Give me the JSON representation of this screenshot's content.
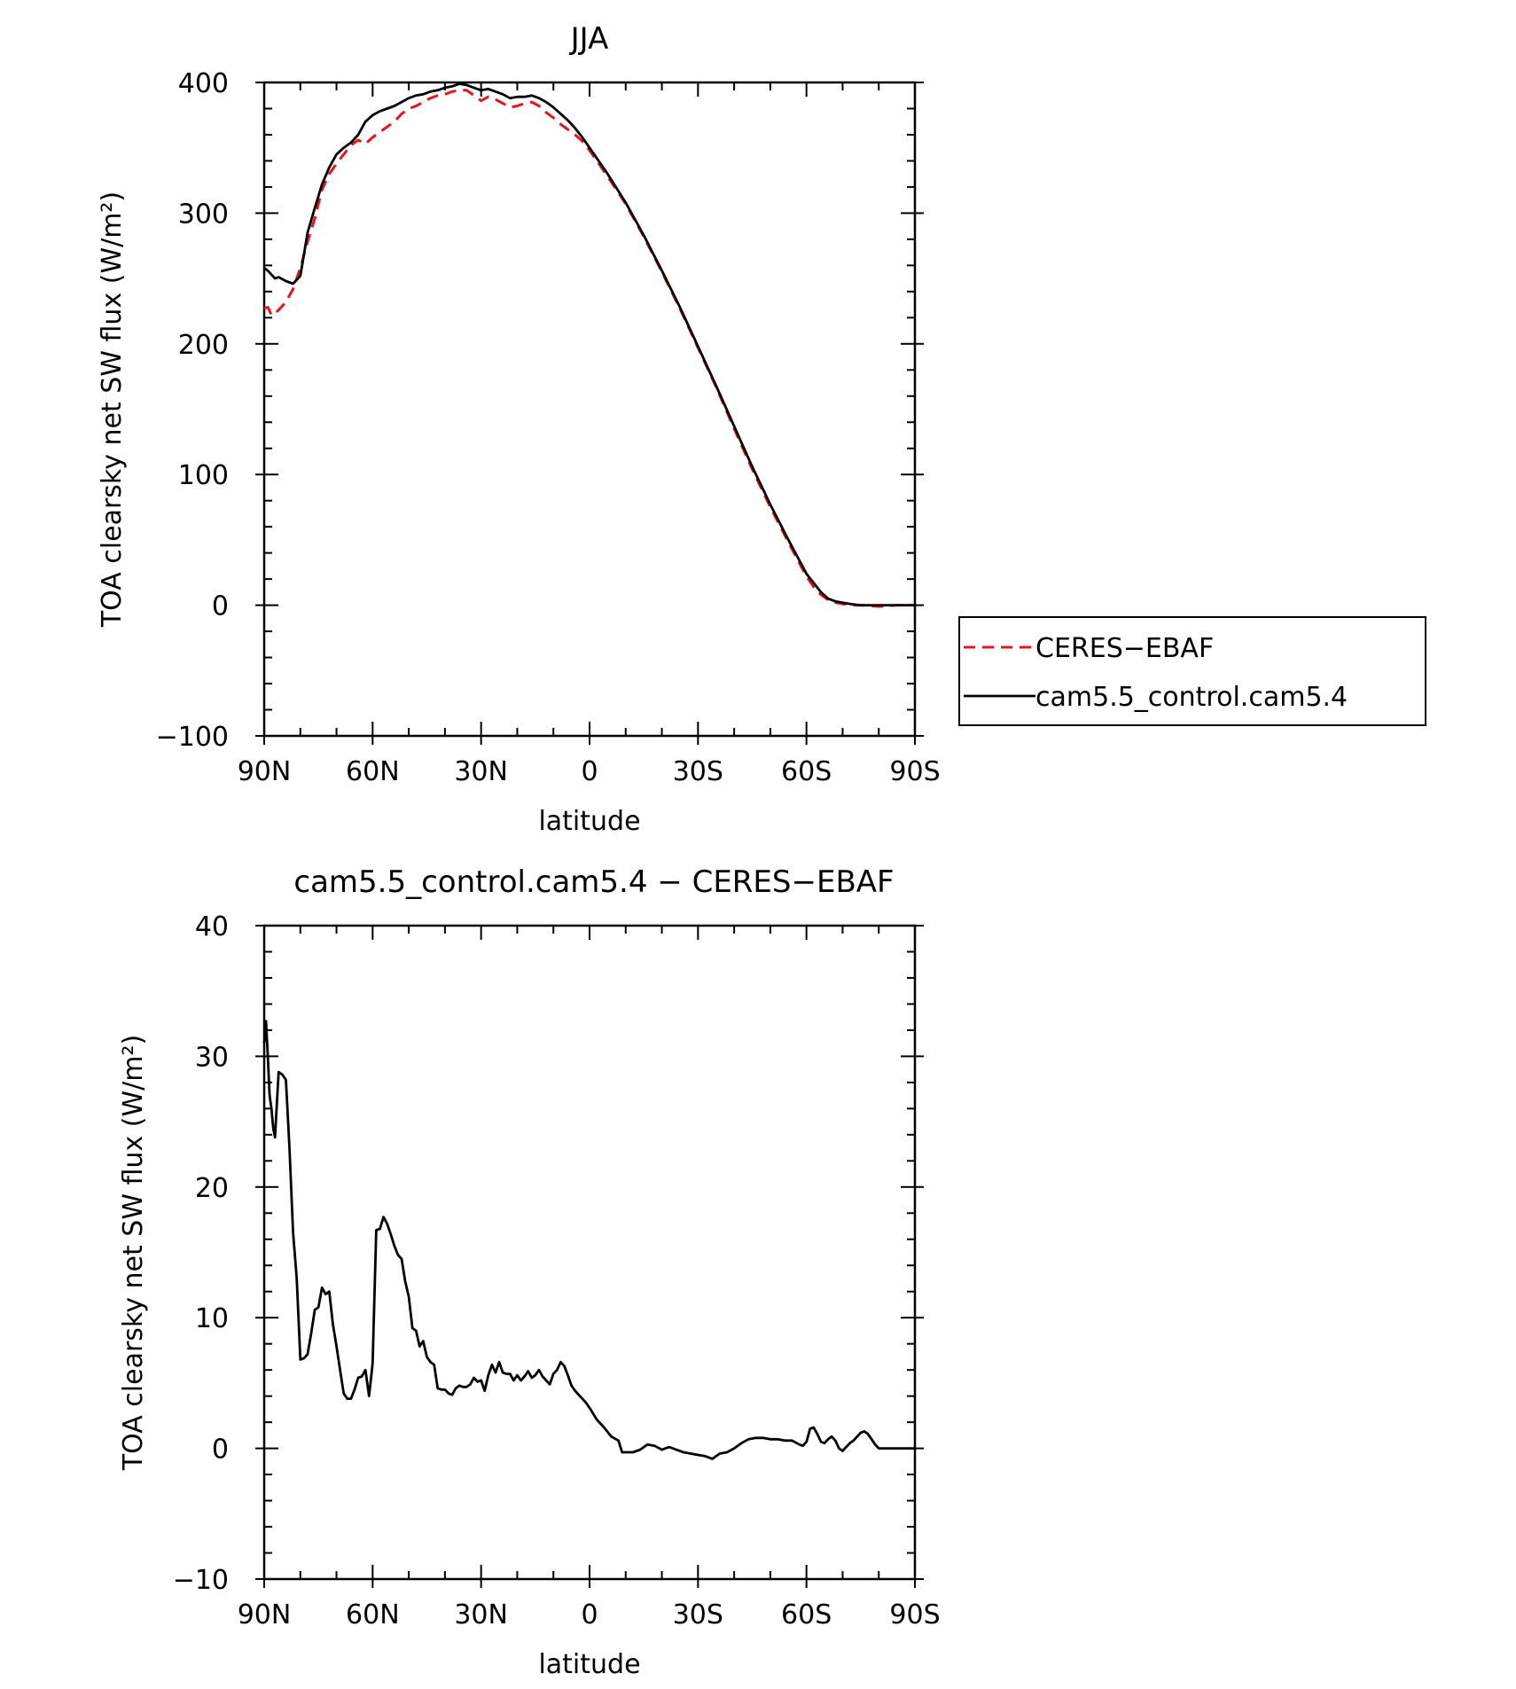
{
  "chart_data": [
    {
      "type": "line",
      "title": "JJA",
      "xlabel": "latitude",
      "ylabel": "TOA clearsky net SW flux (W/m²)",
      "xlim": [
        90,
        -90
      ],
      "ylim": [
        -100,
        400
      ],
      "xticks": [
        90,
        60,
        30,
        0,
        -30,
        -60,
        -90
      ],
      "xtick_labels": [
        "90N",
        "60N",
        "30N",
        "0",
        "30S",
        "60S",
        "90S"
      ],
      "yticks": [
        -100,
        0,
        100,
        200,
        300,
        400
      ],
      "ytick_labels": [
        "−100",
        "0",
        "100",
        "200",
        "300",
        "400"
      ],
      "grid": false,
      "legend": "right",
      "series": [
        {
          "name": "CERES−EBAF",
          "color": "#e8141c",
          "dash": true,
          "x": [
            90,
            89,
            88,
            87,
            86,
            84,
            82,
            80,
            78,
            76,
            74,
            72,
            70,
            68,
            66,
            64,
            62,
            60,
            58,
            56,
            54,
            52,
            50,
            48,
            46,
            44,
            42,
            40,
            38,
            36,
            34,
            32,
            30,
            28,
            26,
            24,
            22,
            20,
            18,
            16,
            14,
            12,
            10,
            8,
            6,
            4,
            2,
            0,
            -5,
            -10,
            -15,
            -20,
            -25,
            -30,
            -35,
            -40,
            -45,
            -50,
            -55,
            -60,
            -62,
            -64,
            -66,
            -68,
            -70,
            -72,
            -75,
            -80,
            -85,
            -90
          ],
          "y": [
            227,
            228,
            222,
            223,
            226,
            232,
            242,
            258,
            278,
            296,
            318,
            330,
            338,
            345,
            352,
            356,
            353,
            358,
            362,
            366,
            370,
            376,
            380,
            382,
            385,
            388,
            390,
            391,
            393,
            394,
            394,
            390,
            386,
            389,
            387,
            384,
            381,
            382,
            384,
            385,
            382,
            377,
            373,
            368,
            364,
            360,
            355,
            348,
            328,
            307,
            282,
            255,
            227,
            197,
            167,
            135,
            104,
            75,
            48,
            22,
            14,
            8,
            4,
            2,
            1,
            0,
            0,
            -1,
            0,
            0
          ]
        },
        {
          "name": "cam5.5_control.cam5.4",
          "color": "#000000",
          "dash": false,
          "x": [
            90,
            89,
            88,
            87,
            86,
            84,
            82,
            80,
            78,
            76,
            74,
            72,
            70,
            68,
            66,
            64,
            62,
            60,
            58,
            56,
            54,
            52,
            50,
            48,
            46,
            44,
            42,
            40,
            38,
            36,
            34,
            32,
            30,
            28,
            26,
            24,
            22,
            20,
            18,
            16,
            14,
            12,
            10,
            8,
            6,
            4,
            2,
            0,
            -5,
            -10,
            -15,
            -20,
            -25,
            -30,
            -35,
            -40,
            -45,
            -50,
            -55,
            -60,
            -62,
            -64,
            -66,
            -68,
            -70,
            -72,
            -75,
            -80,
            -85,
            -90
          ],
          "y": [
            258,
            256,
            253,
            250,
            251,
            248,
            246,
            252,
            285,
            304,
            322,
            335,
            345,
            350,
            354,
            360,
            370,
            375,
            378,
            380,
            382,
            385,
            388,
            390,
            391,
            393,
            394,
            396,
            397,
            399,
            398,
            396,
            394,
            395,
            393,
            391,
            388,
            389,
            389,
            390,
            388,
            385,
            381,
            376,
            371,
            365,
            358,
            350,
            330,
            308,
            283,
            256,
            228,
            198,
            168,
            137,
            106,
            77,
            50,
            24,
            17,
            10,
            5,
            3,
            2,
            1,
            0,
            0,
            0,
            0
          ]
        }
      ]
    },
    {
      "type": "line",
      "title": "cam5.5_control.cam5.4 − CERES−EBAF",
      "xlabel": "latitude",
      "ylabel": "TOA clearsky net SW flux (W/m²)",
      "xlim": [
        90,
        -90
      ],
      "ylim": [
        -10,
        40
      ],
      "xticks": [
        90,
        60,
        30,
        0,
        -30,
        -60,
        -90
      ],
      "xtick_labels": [
        "90N",
        "60N",
        "30N",
        "0",
        "30S",
        "60S",
        "90S"
      ],
      "yticks": [
        -10,
        0,
        10,
        20,
        30,
        40
      ],
      "ytick_labels": [
        "−10",
        "0",
        "10",
        "20",
        "30",
        "40"
      ],
      "grid": false,
      "series": [
        {
          "color": "#000000",
          "dash": false,
          "x": [
            90,
            89.5,
            89,
            88.5,
            88,
            87.5,
            87,
            86,
            85,
            84,
            83,
            82,
            81,
            80,
            79,
            78,
            77,
            76,
            75,
            74,
            73,
            72,
            71,
            70,
            69,
            68,
            67,
            66,
            65,
            64,
            63,
            62,
            61,
            60,
            59,
            58,
            57,
            56,
            55,
            54,
            53,
            52,
            51,
            50,
            49,
            48,
            47,
            46,
            45,
            44,
            43,
            42,
            41,
            40,
            39,
            38,
            37,
            36,
            35,
            34,
            33,
            32,
            31,
            30,
            29,
            28,
            27,
            26,
            25,
            24,
            23,
            22,
            21,
            20,
            19,
            18,
            17,
            16,
            15,
            14,
            13,
            12,
            11,
            10,
            9,
            8,
            7,
            6,
            5,
            4,
            3,
            2,
            1,
            0,
            -2,
            -4,
            -6,
            -8,
            -9,
            -10,
            -12,
            -14,
            -16,
            -18,
            -20,
            -22,
            -24,
            -26,
            -28,
            -30,
            -32,
            -34,
            -36,
            -38,
            -40,
            -42,
            -44,
            -46,
            -48,
            -50,
            -52,
            -54,
            -56,
            -58,
            -59,
            -60,
            -61,
            -62,
            -63,
            -64,
            -65,
            -66,
            -67,
            -68,
            -69,
            -70,
            -71,
            -72,
            -73,
            -74,
            -75,
            -76,
            -77,
            -78,
            -79,
            -80,
            -82,
            -84,
            -86,
            -88,
            -90
          ],
          "y": [
            31,
            32.7,
            30,
            27,
            26,
            24.5,
            23.8,
            28.8,
            28.6,
            28.2,
            23,
            16.5,
            13,
            6.8,
            6.9,
            7.2,
            8.8,
            10.6,
            10.8,
            12.3,
            11.8,
            12,
            9.5,
            7.8,
            6,
            4.2,
            3.8,
            3.8,
            4.5,
            5.4,
            5.5,
            6,
            4,
            6.5,
            16.7,
            16.8,
            17.7,
            17.2,
            16.4,
            15.5,
            14.8,
            14.5,
            12.8,
            11.6,
            9.2,
            9,
            7.8,
            8.2,
            7,
            6.6,
            6.4,
            4.6,
            4.5,
            4.5,
            4.2,
            4.1,
            4.6,
            4.8,
            4.7,
            4.7,
            4.9,
            5.4,
            5.1,
            5.2,
            4.4,
            5.6,
            6.4,
            5.8,
            6.6,
            5.8,
            5.7,
            5.7,
            5.2,
            5.6,
            5.2,
            5.5,
            5.9,
            5.4,
            5.6,
            6,
            5.5,
            5.2,
            4.9,
            5.7,
            6,
            6.6,
            6.3,
            5.6,
            4.8,
            4.4,
            4.1,
            3.8,
            3.5,
            3.1,
            2.2,
            1.6,
            0.9,
            0.6,
            -0.3,
            -0.3,
            -0.3,
            -0.1,
            0.3,
            0.2,
            -0.1,
            0.1,
            -0.1,
            -0.3,
            -0.4,
            -0.5,
            -0.6,
            -0.8,
            -0.4,
            -0.3,
            0,
            0.4,
            0.7,
            0.8,
            0.8,
            0.7,
            0.7,
            0.6,
            0.6,
            0.3,
            0.2,
            0.5,
            1.5,
            1.6,
            1.1,
            0.5,
            0.4,
            0.7,
            0.9,
            0.6,
            0,
            -0.2,
            0.1,
            0.4,
            0.6,
            0.9,
            1.2,
            1.3,
            1.1,
            0.7,
            0.3,
            0,
            0,
            0,
            0,
            0,
            0
          ]
        }
      ]
    }
  ]
}
